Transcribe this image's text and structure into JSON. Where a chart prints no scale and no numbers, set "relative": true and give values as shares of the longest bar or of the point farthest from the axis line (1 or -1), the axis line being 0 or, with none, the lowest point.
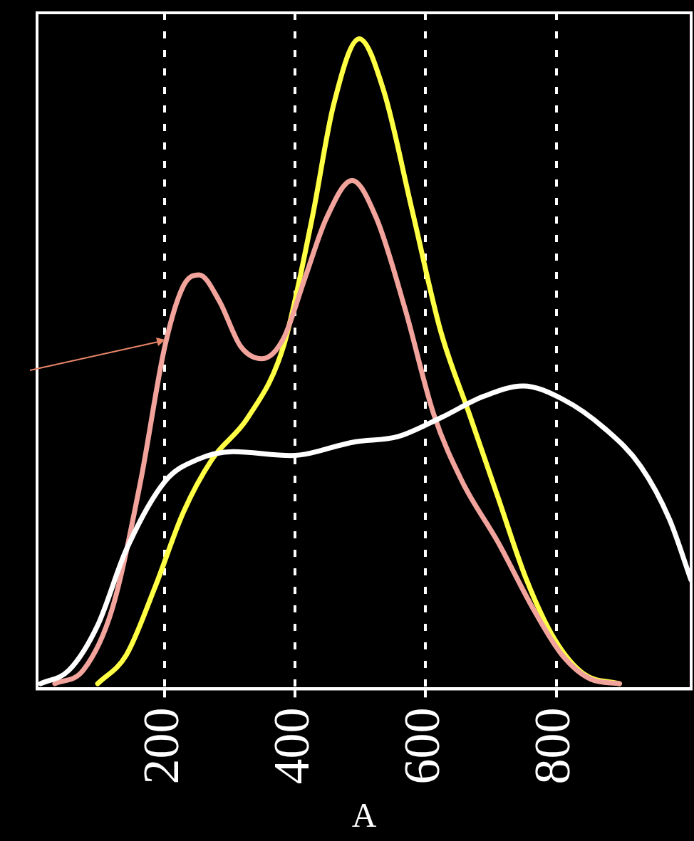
{
  "chart_data": {
    "type": "line",
    "xlabel": "A",
    "relative": true,
    "xlim": [
      4,
      1007
    ],
    "xticks": [
      200,
      400,
      600,
      800
    ],
    "grid": "x",
    "line_style": "solid",
    "marker": "none",
    "series": [
      {
        "color": "#ffffff",
        "x": [
          9.3,
          53.2,
          97.0,
          140.8,
          200,
          250.4,
          305.2,
          392.9,
          491.5,
          557.3,
          623.0,
          688.8,
          749.0,
          809.3,
          875.1,
          929.9,
          973.7,
          1006.6
        ],
        "values": [
          0.008,
          0.029,
          0.098,
          0.214,
          0.319,
          0.353,
          0.365,
          0.359,
          0.38,
          0.388,
          0.417,
          0.45,
          0.466,
          0.446,
          0.4,
          0.342,
          0.261,
          0.168
        ]
      },
      {
        "color": "#f2a49c",
        "x": [
          31.2,
          75.1,
          118.9,
          162.7,
          200,
          228.5,
          252.6,
          283.3,
          316.2,
          349.0,
          381.9,
          414.8,
          447.7,
          487.1,
          524.4,
          568.2,
          612.1,
          655.9,
          710.7,
          765.5,
          809.3,
          853.2,
          897.0
        ],
        "values": [
          0.008,
          0.029,
          0.122,
          0.319,
          0.527,
          0.62,
          0.637,
          0.597,
          0.527,
          0.508,
          0.539,
          0.632,
          0.724,
          0.782,
          0.724,
          0.585,
          0.423,
          0.319,
          0.226,
          0.122,
          0.052,
          0.015,
          0.008
        ]
      },
      {
        "color": "#ffff44",
        "x": [
          97,
          140.8,
          184.7,
          228.5,
          272.3,
          327.1,
          381.9,
          425.8,
          458.6,
          498.1,
          535.3,
          579.2,
          623.0,
          666.8,
          710.7,
          754.5,
          798.4,
          842.2,
          897.0
        ],
        "values": [
          0.008,
          0.052,
          0.156,
          0.272,
          0.353,
          0.417,
          0.527,
          0.724,
          0.898,
          1,
          0.921,
          0.736,
          0.55,
          0.423,
          0.295,
          0.168,
          0.075,
          0.023,
          0.008
        ]
      }
    ]
  }
}
